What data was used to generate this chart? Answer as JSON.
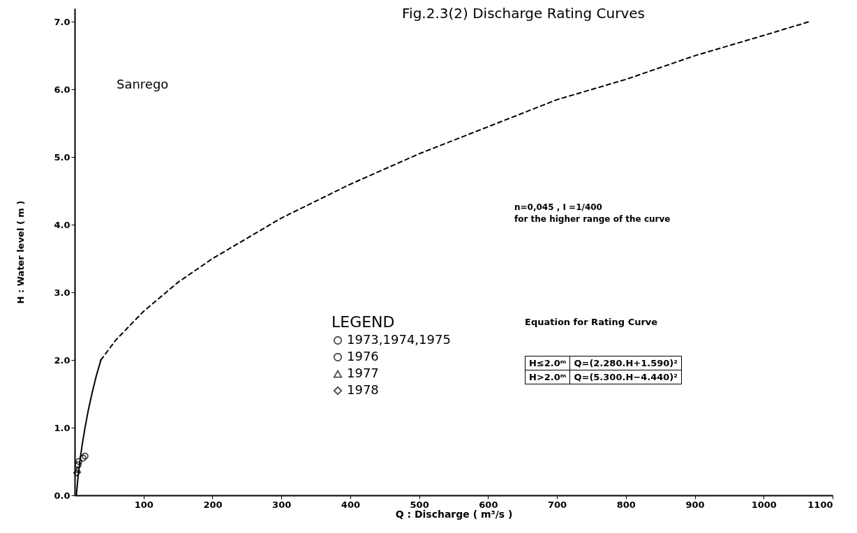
{
  "chart_data": {
    "type": "line",
    "title": "Fig.2.3(2)  Discharge Rating Curves",
    "xlabel": "Q :  Discharge ( m³/s )",
    "ylabel": "H : Water level ( m )",
    "legend_title": "LEGEND",
    "xlim": [
      0,
      1100
    ],
    "xticks": [
      100,
      200,
      300,
      400,
      500,
      600,
      700,
      800,
      900,
      1000,
      1100
    ],
    "ylim": [
      0,
      7.2
    ],
    "yticks": [
      {
        "value": 0,
        "label": "0.0"
      },
      {
        "value": 1,
        "label": "1.0"
      },
      {
        "value": 2,
        "label": "2.0"
      },
      {
        "value": 3,
        "label": "3.0"
      },
      {
        "value": 4,
        "label": "4.0"
      },
      {
        "value": 5,
        "label": "5.0"
      },
      {
        "value": 6,
        "label": "6.0"
      },
      {
        "value": 7,
        "label": "7.0"
      }
    ],
    "grid": false,
    "legend": "center",
    "series": [
      {
        "type": "line",
        "line_style": "solid",
        "color": "#000000",
        "x": [
          2.5,
          3.3,
          5.2,
          7.5,
          10.9,
          15,
          19.6,
          25,
          31,
          38
        ],
        "values": [
          0,
          0.1,
          0.3,
          0.5,
          0.75,
          1.0,
          1.25,
          1.5,
          1.75,
          2.0
        ]
      },
      {
        "type": "line",
        "line_style": "dashed",
        "color": "#000000",
        "x": [
          38,
          60,
          100,
          150,
          200,
          300,
          400,
          500,
          600,
          700,
          800,
          900,
          1000,
          1065
        ],
        "values": [
          2.0,
          2.3,
          2.72,
          3.15,
          3.5,
          4.1,
          4.6,
          5.05,
          5.45,
          5.85,
          6.15,
          6.5,
          6.8,
          7.0
        ]
      },
      {
        "type": "scatter",
        "name": "1973,1974,1975",
        "marker": "circle",
        "color": "#000000",
        "x": [
          15,
          12
        ],
        "values": [
          0.58,
          0.55
        ]
      },
      {
        "type": "scatter",
        "name": "1976",
        "marker": "circle",
        "color": "#000000",
        "x": [
          6,
          5
        ],
        "values": [
          0.5,
          0.45
        ]
      },
      {
        "type": "scatter",
        "name": "1977",
        "marker": "triangle",
        "color": "#000000",
        "x": [
          4
        ],
        "values": [
          0.38
        ]
      },
      {
        "type": "scatter",
        "name": "1978",
        "marker": "diamond",
        "color": "#000000",
        "x": [
          3
        ],
        "values": [
          0.33
        ]
      }
    ],
    "annotations": [
      "Sanrego",
      "n=0,045 , I =1/400",
      "for the higher range of the curve",
      "Equation for Rating Curve",
      "H≤2.0ᵐ",
      "Q=(2.280.H+1.590)²",
      "H>2.0ᵐ",
      "Q=(5.300.H−4.440)²"
    ]
  }
}
